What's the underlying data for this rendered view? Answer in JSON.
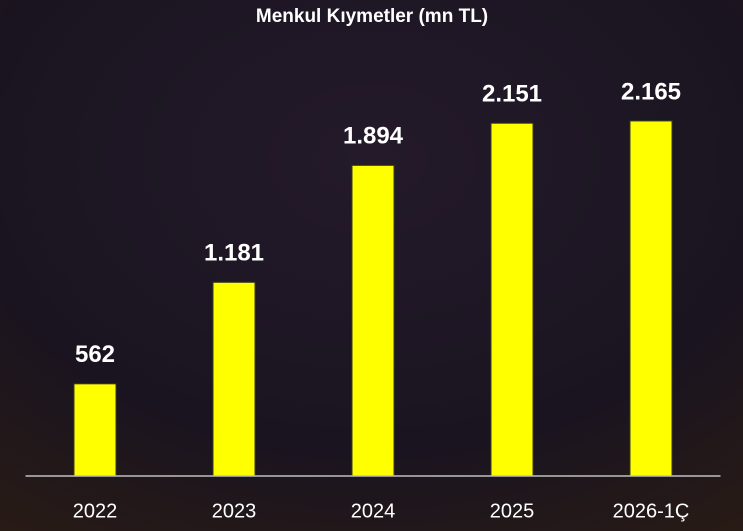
{
  "chart_data": {
    "type": "bar",
    "title": "Menkul Kıymetler (mn TL)",
    "categories": [
      "2022",
      "2023",
      "2024",
      "2025",
      "2026-1Ç"
    ],
    "values": [
      562,
      1181,
      1894,
      2151,
      2165
    ],
    "value_labels": [
      "562",
      "1.181",
      "1.894",
      "2.151",
      "2.165"
    ],
    "color": "#ffff00",
    "ylim": [
      0,
      2500
    ]
  }
}
